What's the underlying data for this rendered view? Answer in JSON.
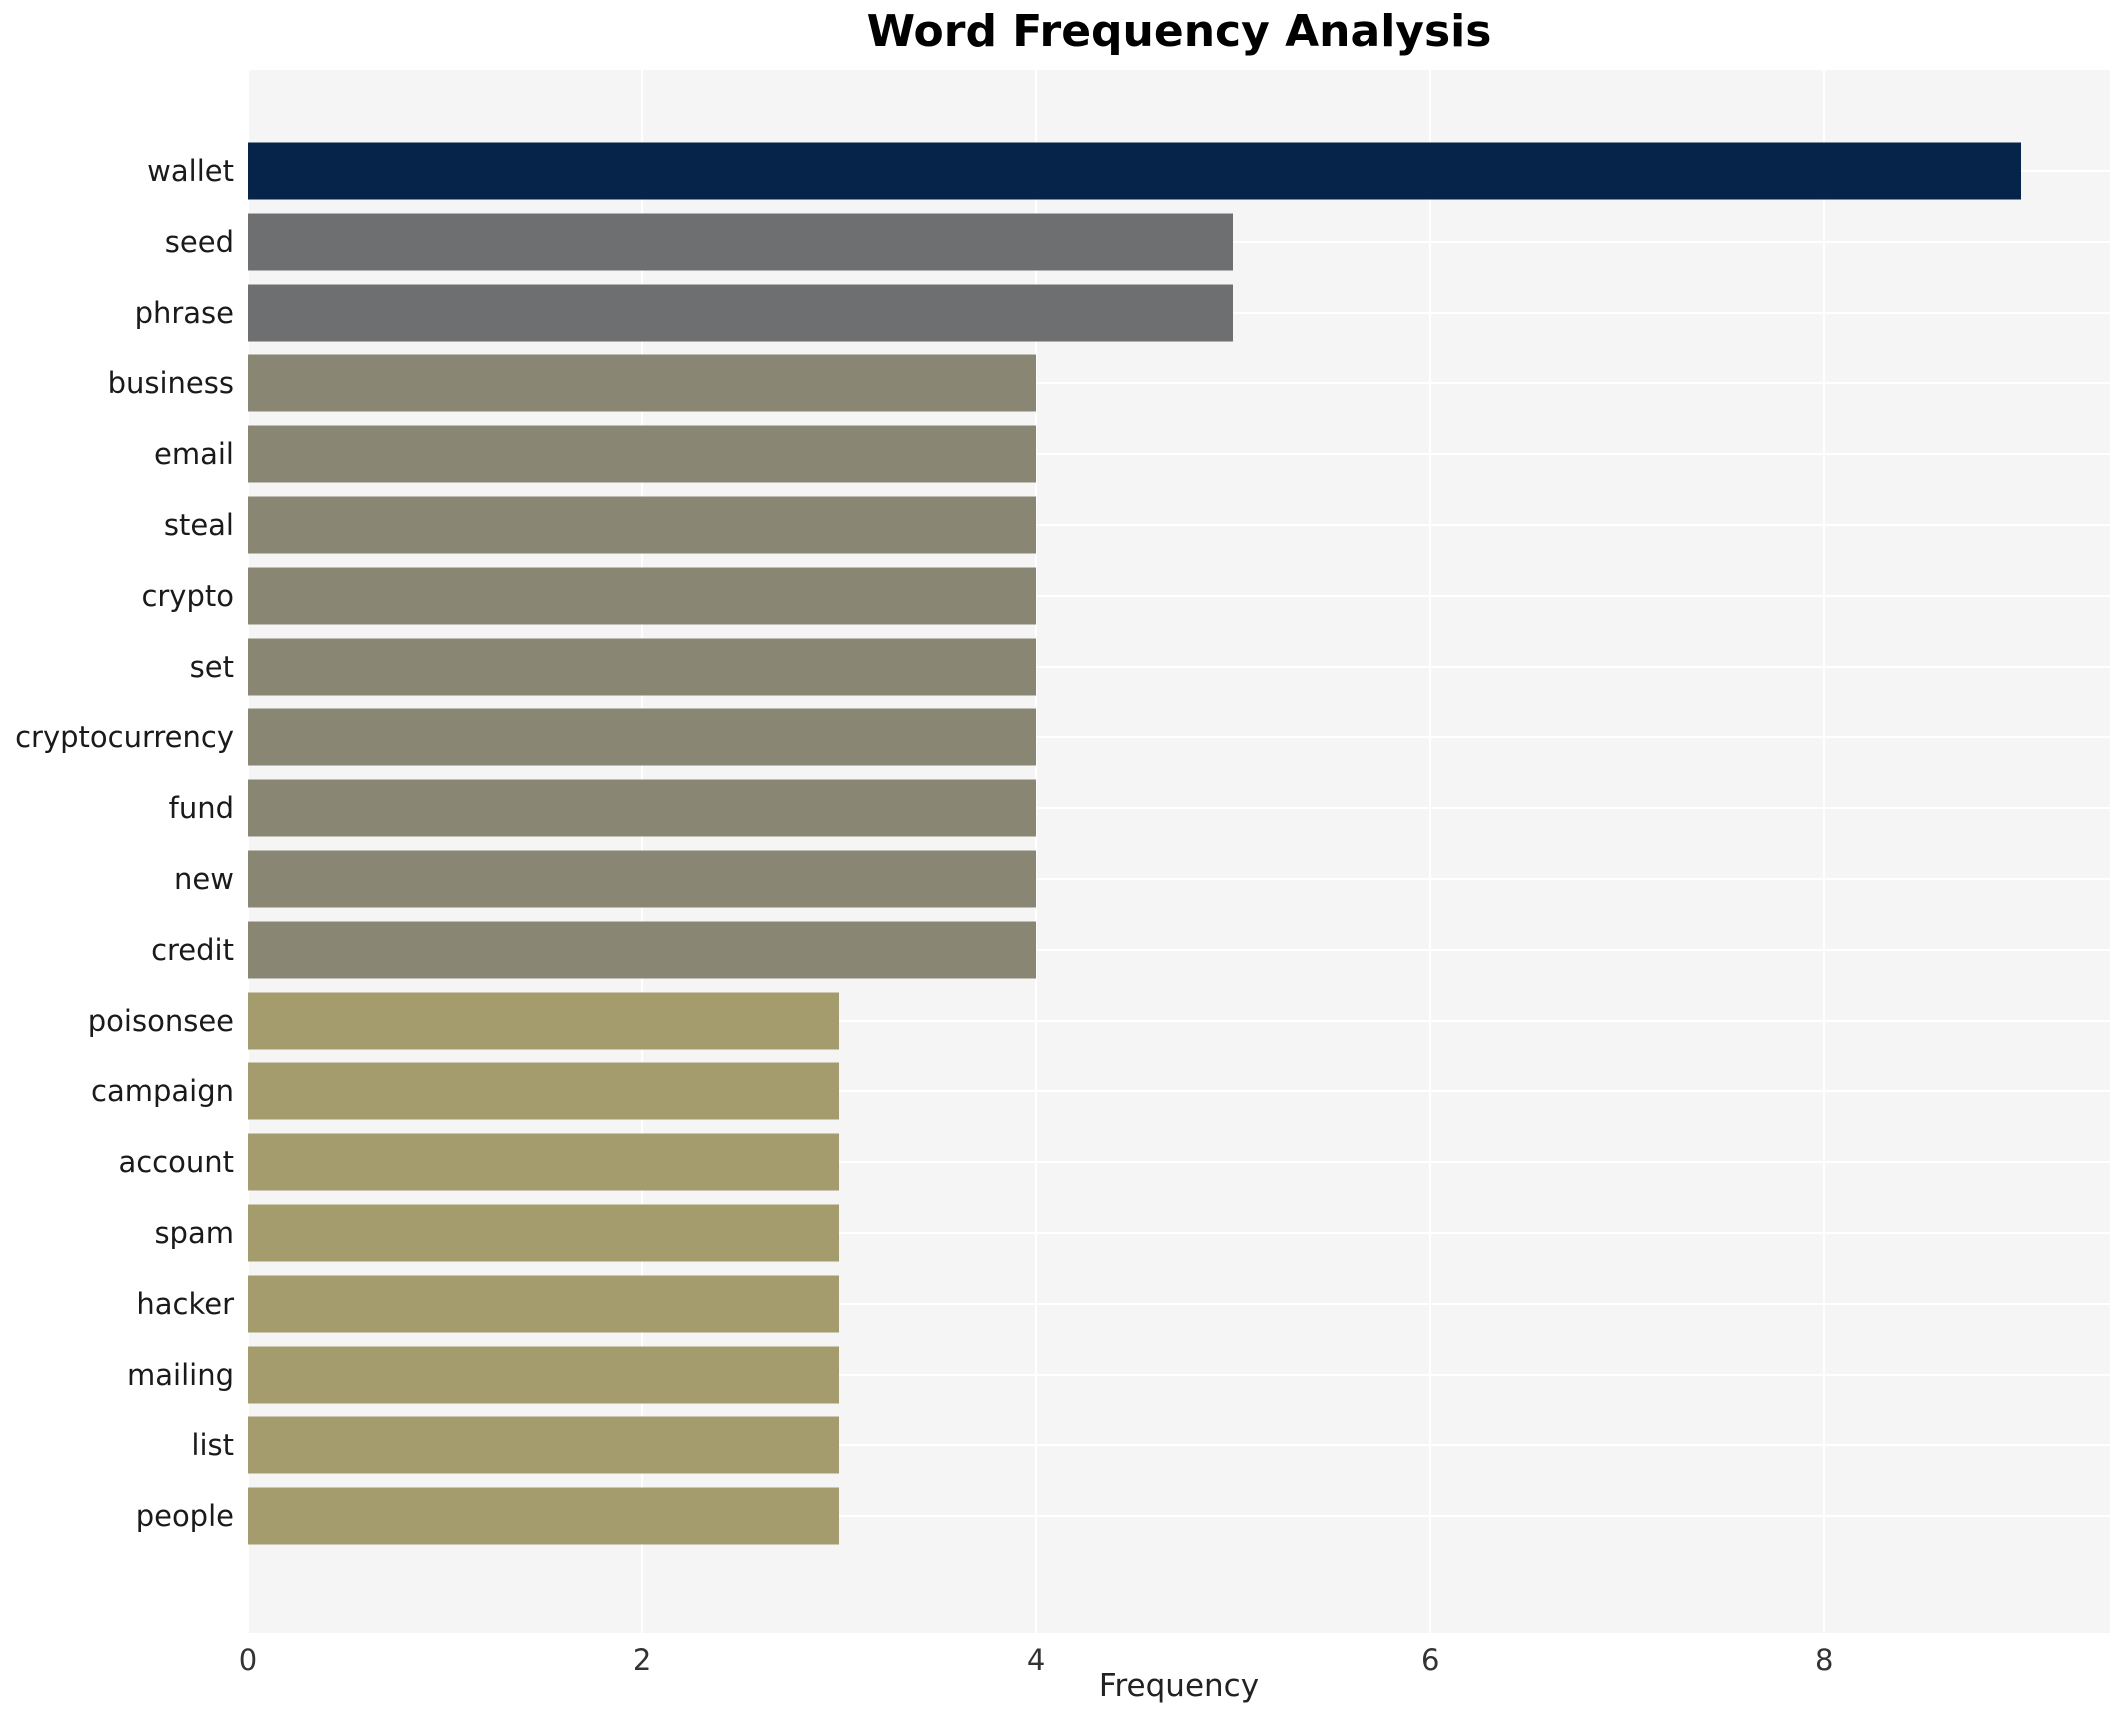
{
  "chart_data": {
    "type": "bar",
    "orientation": "horizontal",
    "title": "Word Frequency Analysis",
    "xlabel": "Frequency",
    "ylabel": "",
    "xlim": [
      0,
      9.45
    ],
    "xticks": [
      0,
      2,
      4,
      6,
      8
    ],
    "grid": true,
    "legend": "none",
    "plot_bg_color": "#f5f5f6",
    "grid_color": "#ffffff",
    "title_color": "#000000",
    "tick_label_color": "#333333",
    "categories": [
      "wallet",
      "seed",
      "phrase",
      "business",
      "email",
      "steal",
      "crypto",
      "set",
      "cryptocurrency",
      "fund",
      "new",
      "credit",
      "poisonsee",
      "campaign",
      "account",
      "spam",
      "hacker",
      "mailing",
      "list",
      "people"
    ],
    "values": [
      9,
      5,
      5,
      4,
      4,
      4,
      4,
      4,
      4,
      4,
      4,
      4,
      3,
      3,
      3,
      3,
      3,
      3,
      3,
      3
    ],
    "bar_colors": [
      "#06234a",
      "#6e6f71",
      "#6e6f71",
      "#8a8674",
      "#8a8674",
      "#8a8674",
      "#8a8674",
      "#8a8674",
      "#8a8674",
      "#8a8674",
      "#8a8674",
      "#8a8674",
      "#a59c6d",
      "#a59c6d",
      "#a59c6d",
      "#a59c6d",
      "#a59c6d",
      "#a59c6d",
      "#a59c6d",
      "#a59c6d"
    ]
  }
}
